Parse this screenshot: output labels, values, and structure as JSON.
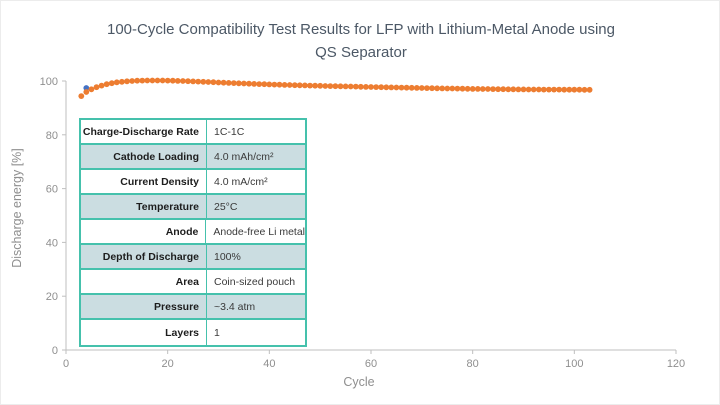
{
  "page": {
    "title_lines": [
      "100-Cycle Compatibility Test Results for LFP with Lithium-Metal Anode using",
      "QS Separator"
    ]
  },
  "chart_data": {
    "type": "scatter",
    "title": "100-Cycle Compatibility Test Results for LFP with Lithium-Metal Anode using QS Separator",
    "xlabel": "Cycle",
    "ylabel": "Discharge energy [%]",
    "xlim": [
      0,
      120
    ],
    "ylim": [
      0,
      100
    ],
    "xticks": [
      0,
      20,
      40,
      60,
      80,
      100,
      120
    ],
    "yticks": [
      0,
      20,
      40,
      60,
      80,
      100
    ],
    "grid": false,
    "legend": false,
    "series": [
      {
        "name": "blue-point",
        "color": "#4472C4",
        "marker": "circle",
        "x": [
          4
        ],
        "y": [
          97.4
        ]
      },
      {
        "name": "discharge-energy",
        "color": "#ED7D31",
        "marker": "circle",
        "x": [
          3,
          4,
          5,
          6,
          7,
          8,
          9,
          10,
          11,
          12,
          13,
          14,
          15,
          16,
          17,
          18,
          19,
          20,
          21,
          22,
          23,
          24,
          25,
          26,
          27,
          28,
          29,
          30,
          31,
          32,
          33,
          34,
          35,
          36,
          37,
          38,
          39,
          40,
          41,
          42,
          43,
          44,
          45,
          46,
          47,
          48,
          49,
          50,
          51,
          52,
          53,
          54,
          55,
          56,
          57,
          58,
          59,
          60,
          61,
          62,
          63,
          64,
          65,
          66,
          67,
          68,
          69,
          70,
          71,
          72,
          73,
          74,
          75,
          76,
          77,
          78,
          79,
          80,
          81,
          82,
          83,
          84,
          85,
          86,
          87,
          88,
          89,
          90,
          91,
          92,
          93,
          94,
          95,
          96,
          97,
          98,
          99,
          100,
          101,
          102,
          103
        ],
        "y": [
          94.4,
          95.9,
          96.9,
          97.7,
          98.3,
          98.8,
          99.2,
          99.5,
          99.7,
          99.9,
          100.0,
          100.1,
          100.15,
          100.2,
          100.2,
          100.2,
          100.18,
          100.15,
          100.1,
          100.05,
          100.0,
          99.93,
          99.85,
          99.78,
          99.7,
          99.62,
          99.54,
          99.46,
          99.38,
          99.3,
          99.22,
          99.14,
          99.07,
          99.0,
          98.93,
          98.86,
          98.8,
          98.74,
          98.68,
          98.62,
          98.56,
          98.5,
          98.45,
          98.4,
          98.35,
          98.3,
          98.25,
          98.2,
          98.15,
          98.1,
          98.06,
          98.02,
          97.98,
          97.94,
          97.9,
          97.86,
          97.82,
          97.78,
          97.74,
          97.7,
          97.66,
          97.62,
          97.58,
          97.54,
          97.5,
          97.46,
          97.42,
          97.38,
          97.35,
          97.32,
          97.29,
          97.26,
          97.23,
          97.2,
          97.17,
          97.14,
          97.11,
          97.08,
          97.05,
          97.03,
          97.01,
          96.99,
          96.97,
          96.95,
          96.93,
          96.91,
          96.89,
          96.87,
          96.85,
          96.84,
          96.83,
          96.82,
          96.81,
          96.8,
          96.79,
          96.78,
          96.77,
          96.76,
          96.75,
          96.74,
          96.73
        ]
      }
    ],
    "colors": {
      "axis": "#BFBFBF",
      "tick_label": "#8f8f8f",
      "axis_title": "#8f8f8f",
      "title": "#4c5866"
    }
  },
  "table": {
    "border_color": "#45C1AC",
    "shaded_row_color": "#CBDDE1",
    "rows": [
      {
        "label": "Charge-Discharge Rate",
        "value": "1C-1C",
        "shaded": false
      },
      {
        "label": "Cathode Loading",
        "value": "4.0 mAh/cm²",
        "shaded": true
      },
      {
        "label": "Current Density",
        "value": "4.0 mA/cm²",
        "shaded": false
      },
      {
        "label": "Temperature",
        "value": "25°C",
        "shaded": true
      },
      {
        "label": "Anode",
        "value": "Anode-free Li metal",
        "shaded": false
      },
      {
        "label": "Depth of Discharge",
        "value": "100%",
        "shaded": true
      },
      {
        "label": "Area",
        "value": "Coin-sized pouch",
        "shaded": false
      },
      {
        "label": "Pressure",
        "value": "~3.4 atm",
        "shaded": true
      },
      {
        "label": "Layers",
        "value": "1",
        "shaded": false
      }
    ]
  }
}
